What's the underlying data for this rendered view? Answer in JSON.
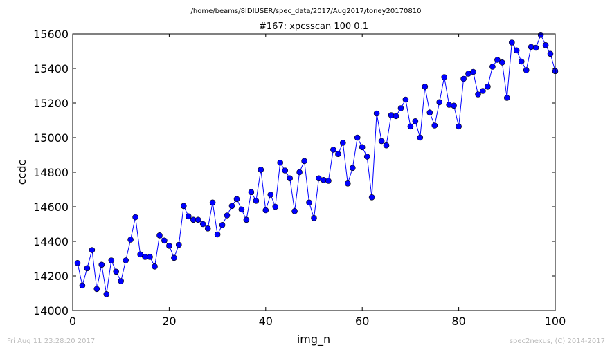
{
  "supertitle": "/home/beams/8IDIUSER/spec_data/2017/Aug2017/toney20170810",
  "footer": {
    "left": "Fri Aug 11 23:28:20 2017",
    "right": "spec2nexus, (C) 2014-2017"
  },
  "colors": {
    "series": "#0000ff",
    "axis": "#000000"
  },
  "chart_data": {
    "type": "line",
    "title": "#167: xpcsscan 100 0.1",
    "xlabel": "img_n",
    "ylabel": "ccdc",
    "xlim": [
      0,
      100
    ],
    "ylim": [
      14000,
      15600
    ],
    "xticks": [
      0,
      20,
      40,
      60,
      80,
      100
    ],
    "xtick_labels": [
      "0",
      "20",
      "40",
      "60",
      "80",
      "100"
    ],
    "yticks": [
      14000,
      14200,
      14400,
      14600,
      14800,
      15000,
      15200,
      15400,
      15600
    ],
    "ytick_labels": [
      "14000",
      "14200",
      "14400",
      "14600",
      "14800",
      "15000",
      "15200",
      "15400",
      "15600"
    ],
    "grid": false,
    "marker": "circle",
    "x": [
      1,
      2,
      3,
      4,
      5,
      6,
      7,
      8,
      9,
      10,
      11,
      12,
      13,
      14,
      15,
      16,
      17,
      18,
      19,
      20,
      21,
      22,
      23,
      24,
      25,
      26,
      27,
      28,
      29,
      30,
      31,
      32,
      33,
      34,
      35,
      36,
      37,
      38,
      39,
      40,
      41,
      42,
      43,
      44,
      45,
      46,
      47,
      48,
      49,
      50,
      51,
      52,
      53,
      54,
      55,
      56,
      57,
      58,
      59,
      60,
      61,
      62,
      63,
      64,
      65,
      66,
      67,
      68,
      69,
      70,
      71,
      72,
      73,
      74,
      75,
      76,
      77,
      78,
      79,
      80,
      81,
      82,
      83,
      84,
      85,
      86,
      87,
      88,
      89,
      90,
      91,
      92,
      93,
      94,
      95,
      96,
      97,
      98,
      99,
      100
    ],
    "y": [
      14275,
      14145,
      14245,
      14350,
      14125,
      14265,
      14095,
      14290,
      14225,
      14170,
      14290,
      14410,
      14540,
      14325,
      14310,
      14310,
      14255,
      14435,
      14405,
      14375,
      14305,
      14380,
      14605,
      14545,
      14525,
      14525,
      14500,
      14475,
      14625,
      14440,
      14495,
      14550,
      14605,
      14645,
      14585,
      14525,
      14685,
      14635,
      14815,
      14580,
      14670,
      14600,
      14855,
      14810,
      14765,
      14575,
      14800,
      14865,
      14625,
      14535,
      14765,
      14755,
      14750,
      14930,
      14905,
      14970,
      14735,
      14825,
      15000,
      14945,
      14890,
      14655,
      15140,
      14980,
      14955,
      15130,
      15125,
      15170,
      15220,
      15065,
      15095,
      15000,
      15295,
      15145,
      15070,
      15205,
      15350,
      15190,
      15185,
      15065,
      15340,
      15370,
      15380,
      15250,
      15270,
      15295,
      15410,
      15450,
      15435,
      15230,
      15550,
      15505,
      15440,
      15390,
      15525,
      15520,
      15595,
      15535,
      15485,
      15385
    ]
  }
}
